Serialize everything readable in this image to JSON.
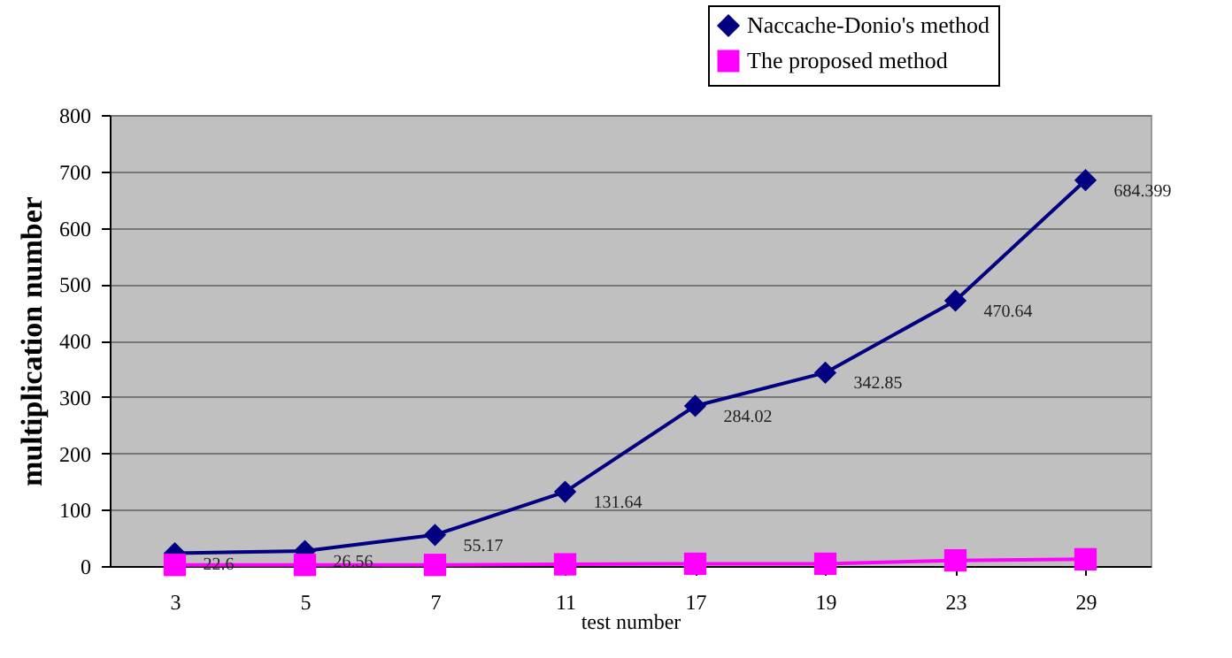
{
  "chart_data": {
    "type": "line",
    "xlabel": "test number",
    "ylabel": "multiplication number",
    "categories": [
      "3",
      "5",
      "7",
      "11",
      "17",
      "19",
      "23",
      "29"
    ],
    "series": [
      {
        "name": "Naccache-Donio's method",
        "color": "#000080",
        "marker": "diamond",
        "values": [
          22.6,
          26.56,
          55.17,
          131.64,
          284.02,
          342.85,
          470.64,
          684.399
        ],
        "value_labels": [
          "22.6",
          "26.56",
          "55.17",
          "131.64",
          "284.02",
          "342.85",
          "470.64",
          "684.399"
        ]
      },
      {
        "name": "The proposed method",
        "color": "#ff00ff",
        "marker": "square",
        "values": [
          2,
          2,
          2,
          3,
          4,
          4,
          10,
          12
        ]
      }
    ],
    "ylim": [
      0,
      800
    ],
    "yticks": [
      0,
      100,
      200,
      300,
      400,
      500,
      600,
      700,
      800
    ],
    "grid": "y",
    "legend": "top right"
  }
}
